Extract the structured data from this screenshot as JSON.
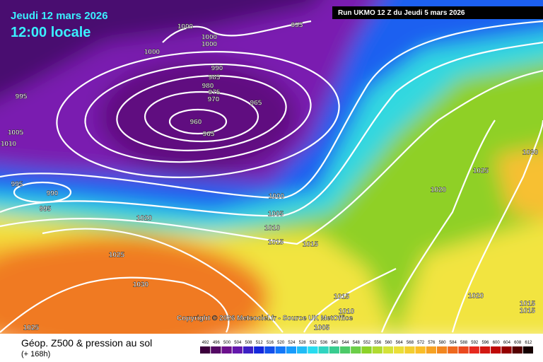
{
  "header": {
    "date": "Jeudi 12 mars 2026",
    "time": "12:00 locale",
    "run": "Run UKMO 12 Z du Jeudi 5 mars 2026"
  },
  "footer": {
    "title": "Géop. Z500 & pression au sol",
    "subtitle": "(+ 168h)",
    "copyright": "Copyright © 2026 Meteociel.fr - Source UK MetOffice"
  },
  "legend": {
    "labels": [
      492,
      496,
      500,
      504,
      508,
      512,
      516,
      520,
      524,
      528,
      532,
      536,
      540,
      544,
      548,
      552,
      556,
      560,
      564,
      568,
      572,
      576,
      580,
      584,
      588,
      592,
      596,
      600,
      604,
      608,
      612
    ]
  },
  "isobars": [
    "1000",
    "1000",
    "1000",
    "995",
    "1000",
    "990",
    "985",
    "980",
    "975",
    "970",
    "965",
    "960",
    "965",
    "995",
    "1005",
    "1010",
    "995",
    "990",
    "995",
    "1020",
    "1025",
    "1030",
    "1025",
    "1000",
    "1005",
    "1010",
    "1015",
    "1015",
    "1015",
    "1010",
    "1005",
    "1020",
    "1025",
    "1030",
    "1020",
    "1015",
    "1015"
  ]
}
